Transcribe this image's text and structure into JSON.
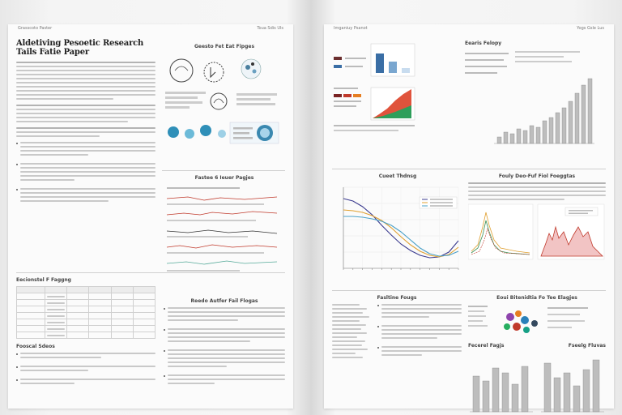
{
  "left_page": {
    "header_left": "Grasscoto Paster",
    "header_right": "Toua Sdis Uls",
    "title_line1": "Aldetiving Pesoetic Research",
    "title_line2": "Tails Fatie Paper",
    "figure_grid_heading": "Geesto Fet Eat Fipges",
    "lines_heading": "Fastee 6 Ieuer Pagjes",
    "table_heading": "Eecionstel F Faggng",
    "text_heading": "Reedo Autfer Fail Flogas",
    "sub_heading": "Fooscal Sdeos"
  },
  "right_page": {
    "header_left": "Imganiuy Psanot",
    "header_right": "Yogs Gsle Lus",
    "bar_heading": "Eearis Felopy",
    "line_chart_title": "Cueet Thdnsg",
    "right_heading2": "Fouly Deo-Fuf Fiol Foeggtas",
    "list_heading": "Fasltine Fougs",
    "bottom_heading": "Eoui Bitenidtia Fo Tee Elagjes",
    "bottom_chart_left": "Fecerel Fagjs",
    "bottom_chart_right": "Fseelg Fluvas"
  },
  "chart_data": {
    "type": "line",
    "title": "Cueet Thdnsg",
    "x": [
      0,
      1,
      2,
      3,
      4,
      5,
      6,
      7,
      8,
      9,
      10,
      11,
      12
    ],
    "series": [
      {
        "values": [
          8.6,
          8.3,
          7.6,
          6.6,
          5.3,
          4.1,
          3.0,
          2.2,
          1.6,
          1.3,
          1.4,
          2.0,
          3.4
        ]
      },
      {
        "values": [
          7.2,
          7.1,
          6.9,
          6.5,
          5.9,
          5.0,
          3.9,
          2.9,
          2.1,
          1.6,
          1.4,
          1.7,
          2.6
        ]
      },
      {
        "values": [
          6.4,
          6.4,
          6.3,
          6.1,
          5.8,
          5.3,
          4.5,
          3.5,
          2.5,
          1.8,
          1.5,
          1.6,
          2.1
        ]
      }
    ],
    "colors": [
      "#3b3b8f",
      "#e0a030",
      "#4aa0c8"
    ],
    "ylim": [
      0,
      10
    ],
    "grid": true,
    "legend": "top-right"
  }
}
